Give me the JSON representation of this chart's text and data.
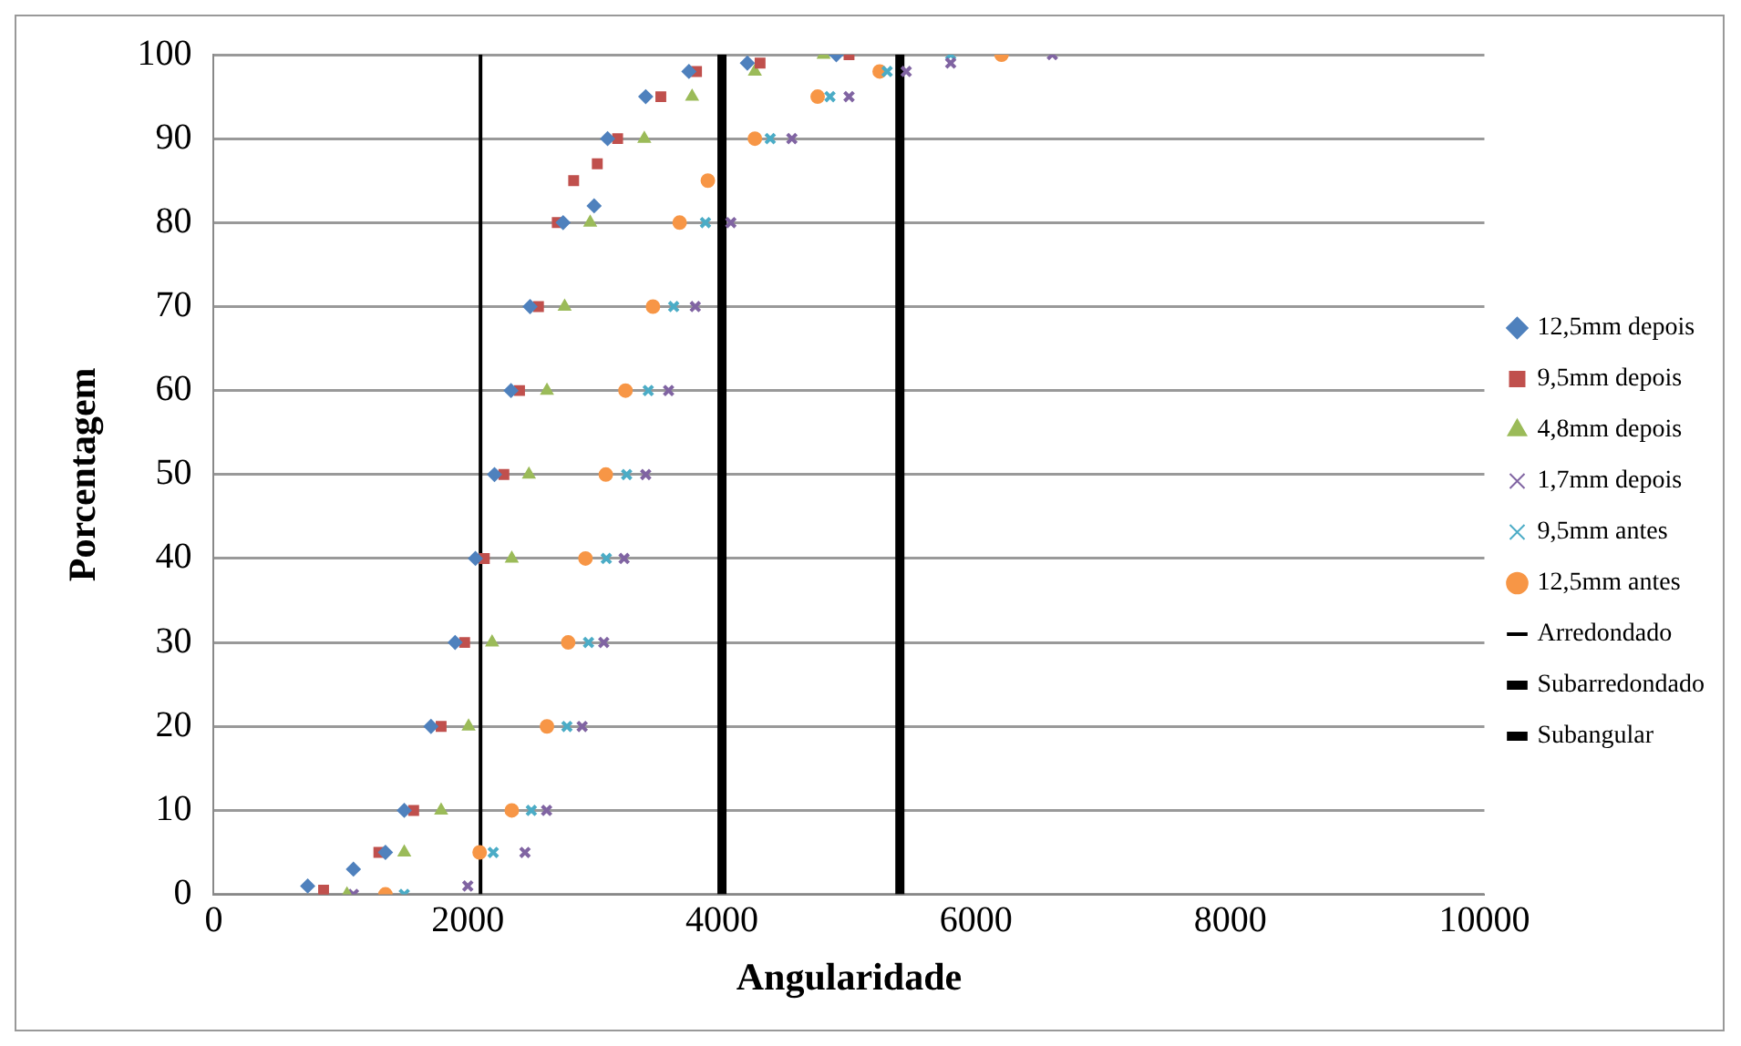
{
  "chart_data": {
    "type": "scatter",
    "xlabel": "Angularidade",
    "ylabel": "Porcentagem",
    "xlim": [
      0,
      10000
    ],
    "xticks": [
      0,
      2000,
      4000,
      6000,
      8000,
      10000
    ],
    "ylim": [
      0,
      100
    ],
    "yticks": [
      0,
      10,
      20,
      30,
      40,
      50,
      60,
      70,
      80,
      90,
      100
    ],
    "grid": "y",
    "legend": "right",
    "series": [
      {
        "name": "12,5mm depois",
        "color": "#4f81bd",
        "marker": "diamond",
        "x": [
          740,
          1100,
          1352,
          1500,
          1710,
          1900,
          2060,
          2210,
          2340,
          2490,
          2750,
          2994,
          3100,
          3400,
          3740,
          4200,
          4900
        ],
        "values": [
          1,
          3,
          5,
          10,
          20,
          30,
          40,
          50,
          60,
          70,
          80,
          82,
          90,
          95,
          98,
          99,
          100
        ]
      },
      {
        "name": "9,5mm depois",
        "color": "#c0504d",
        "marker": "square",
        "x": [
          865,
          1300,
          1574,
          1790,
          1975,
          2130,
          2284,
          2407,
          2556,
          2704,
          2833,
          3019,
          3179,
          3519,
          3800,
          4300,
          5000
        ],
        "values": [
          0.5,
          5,
          10,
          20,
          30,
          40,
          50,
          60,
          70,
          80,
          85,
          87,
          90,
          95,
          98,
          99,
          100
        ]
      },
      {
        "name": "4,8mm depois",
        "color": "#9bbb59",
        "marker": "triangle",
        "x": [
          1049,
          1500,
          1790,
          2006,
          2191,
          2346,
          2481,
          2623,
          2762,
          2963,
          3389,
          3765,
          4259,
          4800
        ],
        "values": [
          0,
          5,
          10,
          20,
          30,
          40,
          50,
          60,
          70,
          80,
          90,
          95,
          98,
          100
        ]
      },
      {
        "name": "1,7mm depois",
        "color": "#8064a2",
        "marker": "cross",
        "x": [
          1100,
          2000,
          2450,
          2620,
          2900,
          3070,
          3230,
          3400,
          3580,
          3790,
          4070,
          4550,
          5000,
          5450,
          5800,
          6600
        ],
        "values": [
          0,
          1,
          5,
          10,
          20,
          30,
          40,
          50,
          60,
          70,
          80,
          90,
          95,
          98,
          99,
          100
        ]
      },
      {
        "name": "9,5mm antes",
        "color": "#4bacc6",
        "marker": "cross",
        "x": [
          1500,
          2200,
          2500,
          2780,
          2950,
          3090,
          3250,
          3420,
          3620,
          3870,
          4380,
          4850,
          5300,
          5800
        ],
        "values": [
          0,
          5,
          10,
          20,
          30,
          40,
          50,
          60,
          70,
          80,
          90,
          95,
          98,
          100
        ]
      },
      {
        "name": "12,5mm antes",
        "color": "#f79646",
        "marker": "circle",
        "x": [
          1352,
          2093,
          2346,
          2623,
          2790,
          2926,
          3086,
          3241,
          3457,
          3667,
          3889,
          4259,
          4753,
          5241,
          6200
        ],
        "values": [
          0,
          5,
          10,
          20,
          30,
          40,
          50,
          60,
          70,
          80,
          85,
          90,
          95,
          98,
          100
        ]
      },
      {
        "name": "Arredondado",
        "type": "line",
        "color": "#000000",
        "marker": "none",
        "x": [
          2100,
          2100
        ],
        "values": [
          0,
          100
        ]
      },
      {
        "name": "Subarredondado",
        "type": "line",
        "color": "#000000",
        "marker": "none",
        "x": [
          4000,
          4000
        ],
        "values": [
          0,
          100
        ]
      },
      {
        "name": "Subangular",
        "type": "line",
        "color": "#000000",
        "marker": "none",
        "x": [
          5400,
          5400
        ],
        "values": [
          0,
          100
        ]
      }
    ]
  }
}
